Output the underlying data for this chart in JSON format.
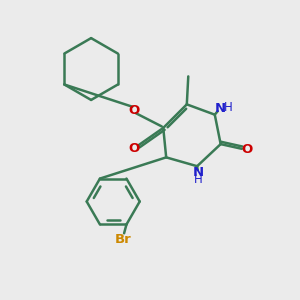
{
  "background_color": "#ebebeb",
  "bond_color": "#3a7a55",
  "bond_width": 1.8,
  "N_color": "#2020cc",
  "O_color": "#cc0000",
  "Br_color": "#cc8800",
  "figsize": [
    3.0,
    3.0
  ],
  "dpi": 100,
  "xlim": [
    0,
    10
  ],
  "ylim": [
    0,
    10
  ]
}
